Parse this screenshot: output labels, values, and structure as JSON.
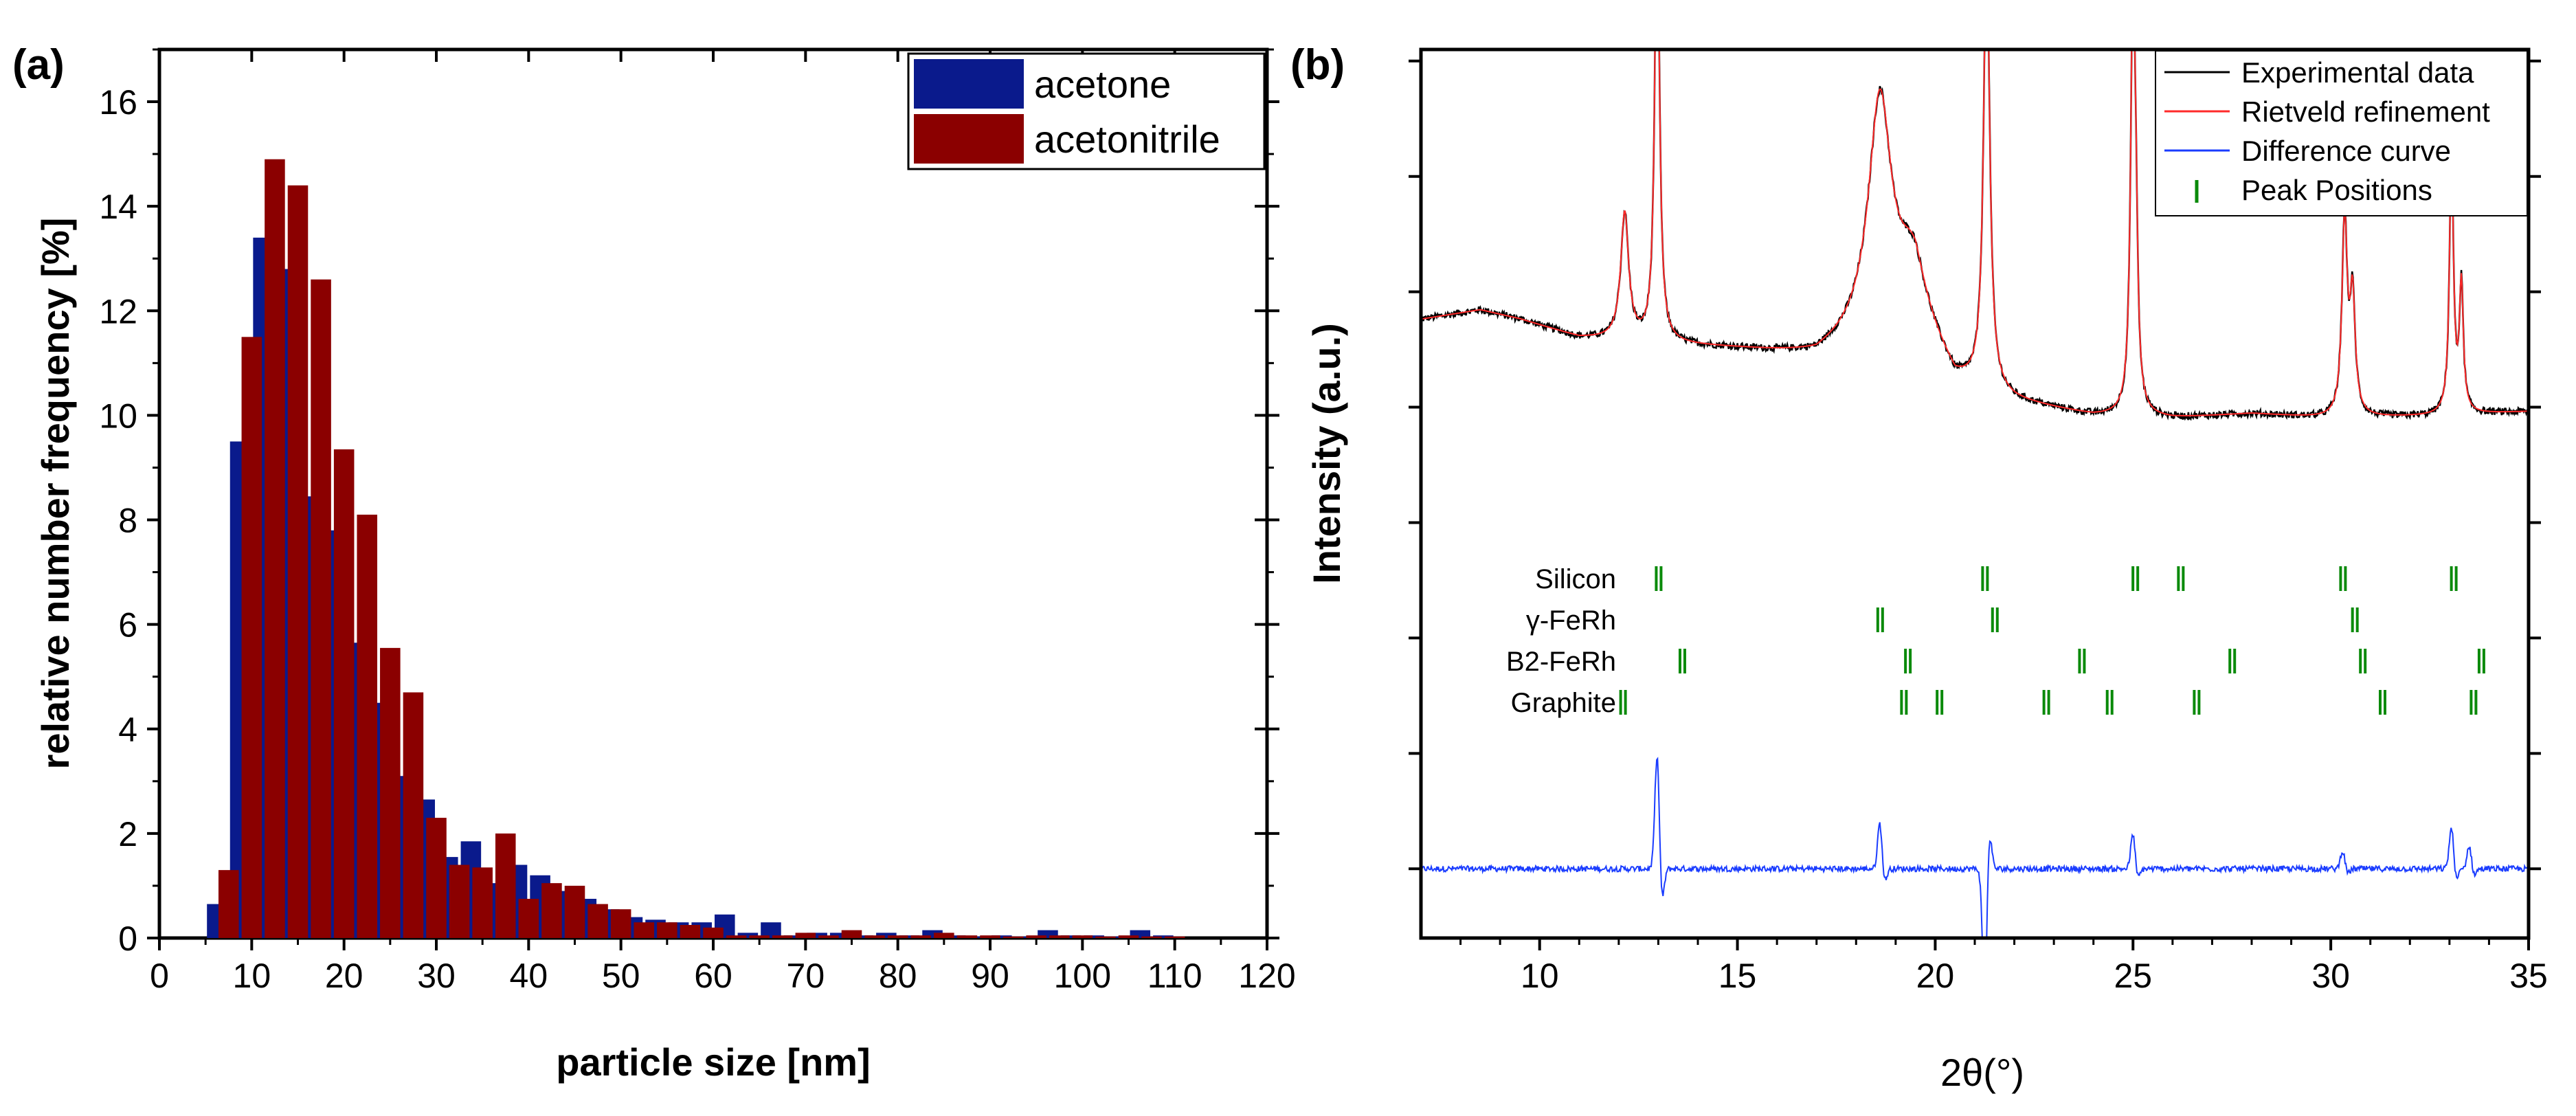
{
  "chart_data": [
    {
      "panel_label": "(a)",
      "type": "bar",
      "title": "",
      "xlabel": "particle size [nm]",
      "ylabel": "relative number frequency [%]",
      "xlim": [
        0,
        120
      ],
      "ylim": [
        0,
        17
      ],
      "xticks": [
        "0",
        "10",
        "20",
        "30",
        "40",
        "50",
        "60",
        "70",
        "80",
        "90",
        "100",
        "110",
        "120"
      ],
      "yticks": [
        "0",
        "2",
        "4",
        "6",
        "8",
        "10",
        "12",
        "14",
        "16"
      ],
      "legend_position": "top-right",
      "series": [
        {
          "name": "acetone",
          "color": "#0a1a8c",
          "points": [
            [
              6.25,
              0.65
            ],
            [
              8.75,
              9.5
            ],
            [
              11.25,
              13.4
            ],
            [
              13.75,
              12.8
            ],
            [
              16.25,
              8.45
            ],
            [
              18.75,
              7.8
            ],
            [
              21.25,
              5.65
            ],
            [
              23.75,
              4.5
            ],
            [
              26.25,
              3.1
            ],
            [
              28.75,
              2.65
            ],
            [
              31.25,
              1.55
            ],
            [
              33.75,
              1.85
            ],
            [
              36.25,
              1.05
            ],
            [
              38.75,
              1.4
            ],
            [
              41.25,
              1.2
            ],
            [
              43.75,
              0.9
            ],
            [
              46.25,
              0.75
            ],
            [
              48.75,
              0.55
            ],
            [
              51.25,
              0.4
            ],
            [
              53.75,
              0.35
            ],
            [
              56.25,
              0.3
            ],
            [
              58.75,
              0.3
            ],
            [
              61.25,
              0.45
            ],
            [
              63.75,
              0.1
            ],
            [
              66.25,
              0.3
            ],
            [
              68.75,
              0.05
            ],
            [
              71.25,
              0.1
            ],
            [
              73.75,
              0.1
            ],
            [
              76.25,
              0.05
            ],
            [
              78.75,
              0.1
            ],
            [
              81.25,
              0.05
            ],
            [
              83.75,
              0.15
            ],
            [
              86.25,
              0.05
            ],
            [
              88.75,
              0.03
            ],
            [
              91.25,
              0.05
            ],
            [
              93.75,
              0.03
            ],
            [
              96.25,
              0.15
            ],
            [
              98.75,
              0.05
            ],
            [
              101.25,
              0.05
            ],
            [
              103.75,
              0.03
            ],
            [
              106.25,
              0.15
            ],
            [
              108.75,
              0.05
            ]
          ]
        },
        {
          "name": "acetonitrile",
          "color": "#8b0000",
          "points": [
            [
              7.5,
              1.3
            ],
            [
              10.0,
              11.5
            ],
            [
              12.5,
              14.9
            ],
            [
              15.0,
              14.4
            ],
            [
              17.5,
              12.6
            ],
            [
              20.0,
              9.35
            ],
            [
              22.5,
              8.1
            ],
            [
              25.0,
              5.55
            ],
            [
              27.5,
              4.7
            ],
            [
              30.0,
              2.3
            ],
            [
              32.5,
              1.4
            ],
            [
              35.0,
              1.35
            ],
            [
              37.5,
              2.0
            ],
            [
              40.0,
              0.75
            ],
            [
              42.5,
              1.05
            ],
            [
              45.0,
              1.0
            ],
            [
              47.5,
              0.65
            ],
            [
              50.0,
              0.55
            ],
            [
              52.5,
              0.3
            ],
            [
              55.0,
              0.3
            ],
            [
              57.5,
              0.25
            ],
            [
              60.0,
              0.2
            ],
            [
              62.5,
              0.05
            ],
            [
              65.0,
              0.05
            ],
            [
              67.5,
              0.05
            ],
            [
              70.0,
              0.1
            ],
            [
              72.5,
              0.05
            ],
            [
              75.0,
              0.15
            ],
            [
              77.5,
              0.05
            ],
            [
              80.0,
              0.05
            ],
            [
              82.5,
              0.05
            ],
            [
              85.0,
              0.1
            ],
            [
              87.5,
              0.05
            ],
            [
              90.0,
              0.05
            ],
            [
              92.5,
              0.03
            ],
            [
              95.0,
              0.05
            ],
            [
              97.5,
              0.05
            ],
            [
              100.0,
              0.05
            ],
            [
              102.5,
              0.03
            ],
            [
              105.0,
              0.05
            ],
            [
              107.5,
              0.03
            ],
            [
              110.0,
              0.03
            ]
          ]
        }
      ]
    },
    {
      "panel_label": "(b)",
      "type": "line",
      "title": "",
      "xlabel": "2θ(°)",
      "ylabel": "Intensity (a.u.)",
      "xlim": [
        7,
        35
      ],
      "ylim": [
        -0.8,
        3.05
      ],
      "xticks": [
        "10",
        "15",
        "20",
        "25",
        "30",
        "35"
      ],
      "legend_position": "top-right",
      "legend": [
        "Experimental data",
        "Rietveld refinement",
        "Difference curve",
        "Peak Positions"
      ],
      "baseline_segments": [
        [
          7,
          1.88
        ],
        [
          8.5,
          1.92
        ],
        [
          9.5,
          1.88
        ],
        [
          11,
          1.8
        ],
        [
          12.5,
          1.78
        ],
        [
          15,
          1.75
        ],
        [
          17,
          1.72
        ],
        [
          19.5,
          1.9
        ],
        [
          20.5,
          1.6
        ],
        [
          22,
          1.52
        ],
        [
          24,
          1.46
        ],
        [
          26,
          1.45
        ],
        [
          28,
          1.47
        ],
        [
          30,
          1.45
        ],
        [
          32.5,
          1.46
        ],
        [
          35,
          1.48
        ]
      ],
      "peaks": [
        {
          "pos": 12.15,
          "height": 0.55,
          "width": 0.12
        },
        {
          "pos": 12.97,
          "height": 2.0,
          "width": 0.07
        },
        {
          "pos": 18.6,
          "height": 1.0,
          "width": 0.35
        },
        {
          "pos": 19.4,
          "height": 0.2,
          "width": 0.4
        },
        {
          "pos": 21.3,
          "height": 2.0,
          "width": 0.09
        },
        {
          "pos": 25.0,
          "height": 1.9,
          "width": 0.07
        },
        {
          "pos": 25.08,
          "height": 0.4,
          "width": 0.05
        },
        {
          "pos": 30.35,
          "height": 0.85,
          "width": 0.08
        },
        {
          "pos": 30.55,
          "height": 0.5,
          "width": 0.08
        },
        {
          "pos": 33.05,
          "height": 1.15,
          "width": 0.06
        },
        {
          "pos": 33.3,
          "height": 0.55,
          "width": 0.06
        }
      ],
      "difference_features": [
        {
          "pos": 12.97,
          "amp": 0.5
        },
        {
          "pos": 18.6,
          "amp": 0.2
        },
        {
          "pos": 21.25,
          "amp": -0.55
        },
        {
          "pos": 25.0,
          "amp": 0.15
        },
        {
          "pos": 30.3,
          "amp": 0.08
        },
        {
          "pos": 33.05,
          "amp": 0.18
        },
        {
          "pos": 33.5,
          "amp": 0.1
        }
      ],
      "series": [
        {
          "name": "Experimental data",
          "color": "#000000"
        },
        {
          "name": "Rietveld refinement",
          "color": "#ff2a2a"
        },
        {
          "name": "Difference curve",
          "color": "#1a3cff"
        },
        {
          "name": "Peak Positions",
          "color": "#0a8a0a"
        }
      ],
      "peak_positions": [
        {
          "phase": "Silicon",
          "positions": [
            13.0,
            21.25,
            25.05,
            26.2,
            30.3,
            33.1
          ]
        },
        {
          "phase": "γ-FeRh",
          "positions": [
            18.6,
            21.5,
            30.6
          ]
        },
        {
          "phase": "B2-FeRh",
          "positions": [
            13.6,
            19.3,
            23.7,
            27.5,
            30.8,
            33.8
          ]
        },
        {
          "phase": "Graphite",
          "positions": [
            12.1,
            19.2,
            20.1,
            22.8,
            24.4,
            26.6,
            31.3,
            33.6
          ]
        }
      ]
    }
  ]
}
